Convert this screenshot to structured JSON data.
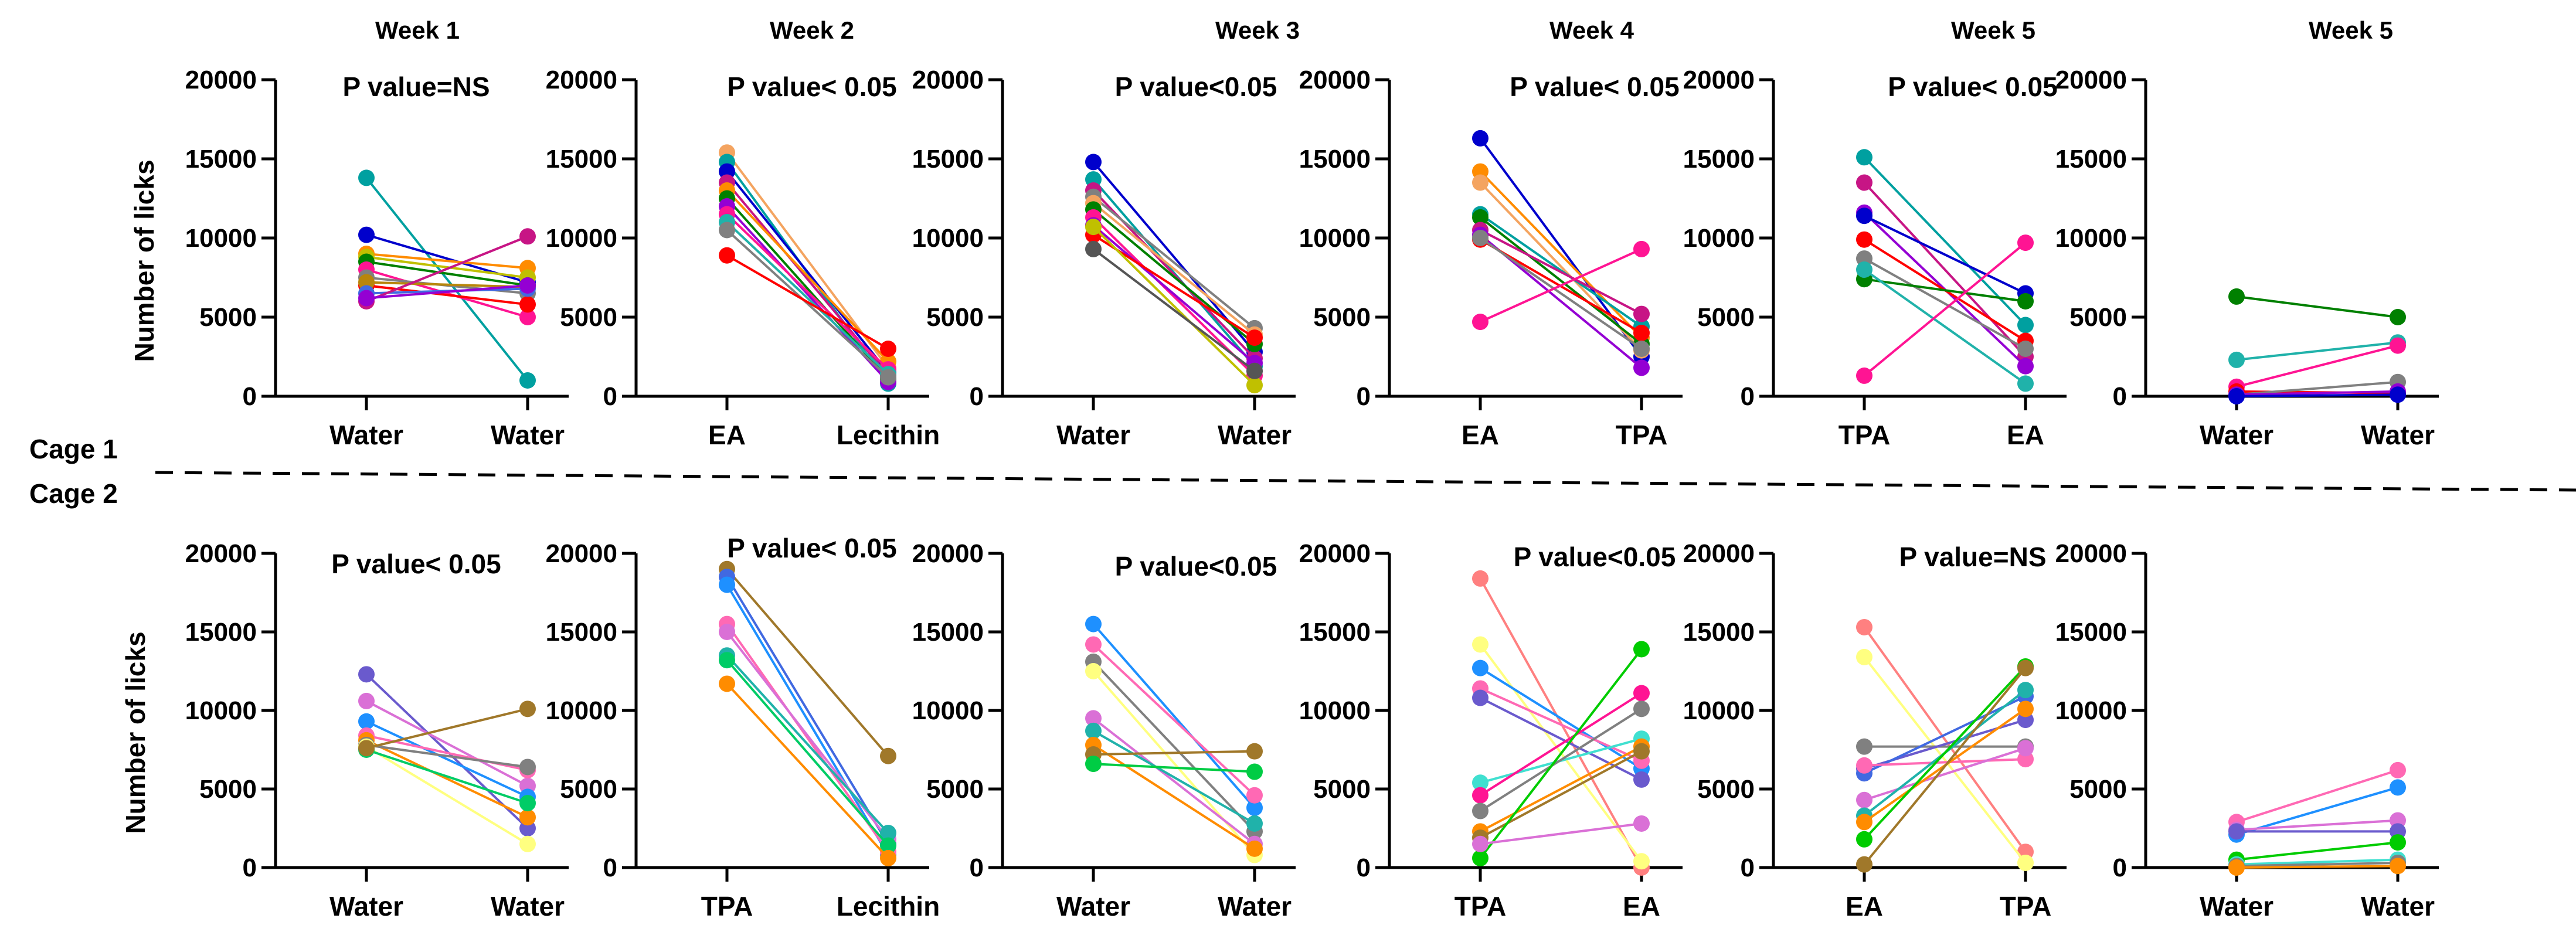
{
  "figure": {
    "week_titles": [
      "Week 1",
      "Week 2",
      "Week 3",
      "Week 4",
      "Week 5",
      "Week 5"
    ],
    "y_axis_label": "Number of licks",
    "cage_labels": [
      "Cage 1",
      "Cage 2"
    ]
  },
  "chart_data": [
    {
      "type": "line",
      "row": 0,
      "col": 0,
      "title": "Week 1",
      "annotation": "P value=NS",
      "categories": [
        "Water",
        "Water"
      ],
      "ylim": [
        0,
        20000
      ],
      "yticks": [
        0,
        5000,
        10000,
        15000,
        20000
      ],
      "ylabel": "Number of licks",
      "series": [
        {
          "color": "#00A0A0",
          "values": [
            13800,
            1000
          ]
        },
        {
          "color": "#0000CC",
          "values": [
            10200,
            7200
          ]
        },
        {
          "color": "#FF8C00",
          "values": [
            9000,
            8100
          ]
        },
        {
          "color": "#C0C000",
          "values": [
            8800,
            7500
          ]
        },
        {
          "color": "#008000",
          "values": [
            8500,
            7000
          ]
        },
        {
          "color": "#FF1493",
          "values": [
            8000,
            5000
          ]
        },
        {
          "color": "#808080",
          "values": [
            7500,
            6500
          ]
        },
        {
          "color": "#FF0000",
          "values": [
            7000,
            5800
          ]
        },
        {
          "color": "#B8860B",
          "values": [
            7200,
            6900
          ]
        },
        {
          "color": "#4169E1",
          "values": [
            6500,
            6800
          ]
        },
        {
          "color": "#C71585",
          "values": [
            6000,
            10100
          ]
        },
        {
          "color": "#9400D3",
          "values": [
            6200,
            7000
          ]
        }
      ]
    },
    {
      "type": "line",
      "row": 0,
      "col": 1,
      "title": "Week 2",
      "annotation": "P value< 0.05",
      "categories": [
        "EA",
        "Lecithin"
      ],
      "ylim": [
        0,
        20000
      ],
      "yticks": [
        0,
        5000,
        10000,
        15000,
        20000
      ],
      "series": [
        {
          "color": "#F4A460",
          "values": [
            15400,
            1800
          ]
        },
        {
          "color": "#00A0A0",
          "values": [
            14800,
            800
          ]
        },
        {
          "color": "#0000CC",
          "values": [
            14200,
            1500
          ]
        },
        {
          "color": "#C71585",
          "values": [
            13500,
            1300
          ]
        },
        {
          "color": "#FF8C00",
          "values": [
            13000,
            2200
          ]
        },
        {
          "color": "#008000",
          "values": [
            12500,
            1100
          ]
        },
        {
          "color": "#9400D3",
          "values": [
            12000,
            900
          ]
        },
        {
          "color": "#FF1493",
          "values": [
            11500,
            1700
          ]
        },
        {
          "color": "#20B2AA",
          "values": [
            11000,
            1400
          ]
        },
        {
          "color": "#808080",
          "values": [
            10500,
            1200
          ]
        },
        {
          "color": "#FF0000",
          "values": [
            8900,
            3000
          ]
        }
      ]
    },
    {
      "type": "line",
      "row": 0,
      "col": 2,
      "title": "Week 3",
      "annotation": "P value<0.05",
      "categories": [
        "Water",
        "Water"
      ],
      "ylim": [
        0,
        20000
      ],
      "yticks": [
        0,
        5000,
        10000,
        15000,
        20000
      ],
      "series": [
        {
          "color": "#0000CC",
          "values": [
            14800,
            2800
          ]
        },
        {
          "color": "#00A0A0",
          "values": [
            13700,
            1900
          ]
        },
        {
          "color": "#C71585",
          "values": [
            13000,
            2400
          ]
        },
        {
          "color": "#808080",
          "values": [
            12600,
            4300
          ]
        },
        {
          "color": "#F4A460",
          "values": [
            12200,
            3900
          ]
        },
        {
          "color": "#008000",
          "values": [
            11800,
            3300
          ]
        },
        {
          "color": "#FF1493",
          "values": [
            11300,
            1300
          ]
        },
        {
          "color": "#9400D3",
          "values": [
            10800,
            2100
          ]
        },
        {
          "color": "#FF0000",
          "values": [
            10200,
            3700
          ]
        },
        {
          "color": "#C0C000",
          "values": [
            10700,
            700
          ]
        },
        {
          "color": "#555555",
          "values": [
            9300,
            1600
          ]
        }
      ]
    },
    {
      "type": "line",
      "row": 0,
      "col": 3,
      "title": "Week 4",
      "annotation": "P value< 0.05",
      "categories": [
        "EA",
        "TPA"
      ],
      "ylim": [
        0,
        20000
      ],
      "yticks": [
        0,
        5000,
        10000,
        15000,
        20000
      ],
      "series": [
        {
          "color": "#0000CC",
          "values": [
            16300,
            2500
          ]
        },
        {
          "color": "#FF8C00",
          "values": [
            14200,
            3700
          ]
        },
        {
          "color": "#F4A460",
          "values": [
            13500,
            2900
          ]
        },
        {
          "color": "#00A0A0",
          "values": [
            11500,
            4400
          ]
        },
        {
          "color": "#008000",
          "values": [
            11300,
            3300
          ]
        },
        {
          "color": "#C71585",
          "values": [
            10500,
            5200
          ]
        },
        {
          "color": "#9400D3",
          "values": [
            10200,
            1800
          ]
        },
        {
          "color": "#FF0000",
          "values": [
            9900,
            4000
          ]
        },
        {
          "color": "#808080",
          "values": [
            10000,
            3000
          ]
        },
        {
          "color": "#FF1493",
          "values": [
            4700,
            9300
          ]
        }
      ]
    },
    {
      "type": "line",
      "row": 0,
      "col": 4,
      "title": "Week 5",
      "annotation": "P value< 0.05",
      "categories": [
        "TPA",
        "EA"
      ],
      "ylim": [
        0,
        20000
      ],
      "yticks": [
        0,
        5000,
        10000,
        15000,
        20000
      ],
      "series": [
        {
          "color": "#00A0A0",
          "values": [
            15100,
            4500
          ]
        },
        {
          "color": "#C71585",
          "values": [
            13500,
            2500
          ]
        },
        {
          "color": "#9400D3",
          "values": [
            11600,
            1900
          ]
        },
        {
          "color": "#0000CC",
          "values": [
            11400,
            6500
          ]
        },
        {
          "color": "#FF0000",
          "values": [
            9900,
            3500
          ]
        },
        {
          "color": "#808080",
          "values": [
            8700,
            3000
          ]
        },
        {
          "color": "#008000",
          "values": [
            7400,
            6000
          ]
        },
        {
          "color": "#20B2AA",
          "values": [
            8000,
            800
          ]
        },
        {
          "color": "#FF1493",
          "values": [
            1300,
            9700
          ]
        }
      ]
    },
    {
      "type": "line",
      "row": 0,
      "col": 5,
      "title": "Week 5",
      "annotation": "",
      "categories": [
        "Water",
        "Water"
      ],
      "ylim": [
        0,
        20000
      ],
      "yticks": [
        0,
        5000,
        10000,
        15000,
        20000
      ],
      "series": [
        {
          "color": "#008000",
          "values": [
            6300,
            5000
          ]
        },
        {
          "color": "#20B2AA",
          "values": [
            2300,
            3400
          ]
        },
        {
          "color": "#FF1493",
          "values": [
            600,
            3200
          ]
        },
        {
          "color": "#FF0000",
          "values": [
            300,
            200
          ]
        },
        {
          "color": "#808080",
          "values": [
            100,
            900
          ]
        },
        {
          "color": "#9400D3",
          "values": [
            100,
            300
          ]
        },
        {
          "color": "#0000CC",
          "values": [
            0,
            100
          ]
        }
      ]
    },
    {
      "type": "line",
      "row": 1,
      "col": 0,
      "title": "",
      "annotation": "P value< 0.05",
      "categories": [
        "Water",
        "Water"
      ],
      "ylim": [
        0,
        20000
      ],
      "yticks": [
        0,
        5000,
        10000,
        15000,
        20000
      ],
      "ylabel": "Number of licks",
      "series": [
        {
          "color": "#6A5ACD",
          "values": [
            12300,
            2500
          ]
        },
        {
          "color": "#DA70D6",
          "values": [
            10600,
            5200
          ]
        },
        {
          "color": "#1E90FF",
          "values": [
            9300,
            4500
          ]
        },
        {
          "color": "#FF69B4",
          "values": [
            8400,
            6200
          ]
        },
        {
          "color": "#FF8C00",
          "values": [
            8100,
            3200
          ]
        },
        {
          "color": "#808080",
          "values": [
            7800,
            6400
          ]
        },
        {
          "color": "#FFFF80",
          "values": [
            7700,
            1500
          ]
        },
        {
          "color": "#00CC66",
          "values": [
            7500,
            4100
          ]
        },
        {
          "color": "#A0782A",
          "values": [
            7600,
            10100
          ]
        }
      ]
    },
    {
      "type": "line",
      "row": 1,
      "col": 1,
      "title": "",
      "annotation": "P value< 0.05",
      "categories": [
        "TPA",
        "Lecithin"
      ],
      "ylim": [
        0,
        20000
      ],
      "yticks": [
        0,
        5000,
        10000,
        15000,
        20000
      ],
      "series": [
        {
          "color": "#A0782A",
          "values": [
            19000,
            7100
          ]
        },
        {
          "color": "#4169E1",
          "values": [
            18500,
            1500
          ]
        },
        {
          "color": "#1E90FF",
          "values": [
            18000,
            800
          ]
        },
        {
          "color": "#FF69B4",
          "values": [
            15500,
            1000
          ]
        },
        {
          "color": "#DA70D6",
          "values": [
            15000,
            1800
          ]
        },
        {
          "color": "#20B2AA",
          "values": [
            13500,
            2200
          ]
        },
        {
          "color": "#00CC66",
          "values": [
            13200,
            1400
          ]
        },
        {
          "color": "#FF8C00",
          "values": [
            11700,
            600
          ]
        }
      ]
    },
    {
      "type": "line",
      "row": 1,
      "col": 2,
      "title": "",
      "annotation": "P value<0.05",
      "categories": [
        "Water",
        "Water"
      ],
      "ylim": [
        0,
        20000
      ],
      "yticks": [
        0,
        5000,
        10000,
        15000,
        20000
      ],
      "series": [
        {
          "color": "#1E90FF",
          "values": [
            15500,
            3800
          ]
        },
        {
          "color": "#FF69B4",
          "values": [
            14200,
            4600
          ]
        },
        {
          "color": "#808080",
          "values": [
            13100,
            2300
          ]
        },
        {
          "color": "#FFFF80",
          "values": [
            12500,
            800
          ]
        },
        {
          "color": "#DA70D6",
          "values": [
            9500,
            1500
          ]
        },
        {
          "color": "#20B2AA",
          "values": [
            8700,
            2800
          ]
        },
        {
          "color": "#FF8C00",
          "values": [
            7800,
            1200
          ]
        },
        {
          "color": "#A0782A",
          "values": [
            7200,
            7400
          ]
        },
        {
          "color": "#00CC44",
          "values": [
            6600,
            6100
          ]
        }
      ]
    },
    {
      "type": "line",
      "row": 1,
      "col": 3,
      "title": "",
      "annotation": "P value<0.05",
      "categories": [
        "TPA",
        "EA"
      ],
      "ylim": [
        0,
        20000
      ],
      "yticks": [
        0,
        5000,
        10000,
        15000,
        20000
      ],
      "series": [
        {
          "color": "#FF8080",
          "values": [
            18400,
            0
          ]
        },
        {
          "color": "#FFFF80",
          "values": [
            14200,
            400
          ]
        },
        {
          "color": "#1E90FF",
          "values": [
            12700,
            6300
          ]
        },
        {
          "color": "#FF69B4",
          "values": [
            11400,
            6800
          ]
        },
        {
          "color": "#6A5ACD",
          "values": [
            10800,
            5600
          ]
        },
        {
          "color": "#40E0D0",
          "values": [
            5400,
            8200
          ]
        },
        {
          "color": "#FF1493",
          "values": [
            4600,
            11100
          ]
        },
        {
          "color": "#808080",
          "values": [
            3600,
            10100
          ]
        },
        {
          "color": "#FF8C00",
          "values": [
            2300,
            7700
          ]
        },
        {
          "color": "#A0782A",
          "values": [
            1900,
            7400
          ]
        },
        {
          "color": "#00CC00",
          "values": [
            600,
            13900
          ]
        },
        {
          "color": "#DA70D6",
          "values": [
            1500,
            2800
          ]
        }
      ]
    },
    {
      "type": "line",
      "row": 1,
      "col": 4,
      "title": "",
      "annotation": "P value=NS",
      "categories": [
        "EA",
        "TPA"
      ],
      "ylim": [
        0,
        20000
      ],
      "yticks": [
        0,
        5000,
        10000,
        15000,
        20000
      ],
      "series": [
        {
          "color": "#FF8080",
          "values": [
            15300,
            1000
          ]
        },
        {
          "color": "#FFFF80",
          "values": [
            13400,
            300
          ]
        },
        {
          "color": "#808080",
          "values": [
            7700,
            7700
          ]
        },
        {
          "color": "#6A5ACD",
          "values": [
            6300,
            9400
          ]
        },
        {
          "color": "#4169E1",
          "values": [
            6000,
            10900
          ]
        },
        {
          "color": "#FF69B4",
          "values": [
            6500,
            6900
          ]
        },
        {
          "color": "#DA70D6",
          "values": [
            4300,
            7600
          ]
        },
        {
          "color": "#20B2AA",
          "values": [
            3300,
            11300
          ]
        },
        {
          "color": "#FF8C00",
          "values": [
            2900,
            10100
          ]
        },
        {
          "color": "#00CC00",
          "values": [
            1800,
            12800
          ]
        },
        {
          "color": "#A0782A",
          "values": [
            200,
            12700
          ]
        }
      ]
    },
    {
      "type": "line",
      "row": 1,
      "col": 5,
      "title": "",
      "annotation": "",
      "categories": [
        "Water",
        "Water"
      ],
      "ylim": [
        0,
        20000
      ],
      "yticks": [
        0,
        5000,
        10000,
        15000,
        20000
      ],
      "series": [
        {
          "color": "#FF69B4",
          "values": [
            2900,
            6200
          ]
        },
        {
          "color": "#1E90FF",
          "values": [
            2100,
            5100
          ]
        },
        {
          "color": "#DA70D6",
          "values": [
            2400,
            3000
          ]
        },
        {
          "color": "#6A5ACD",
          "values": [
            2300,
            2300
          ]
        },
        {
          "color": "#00CC00",
          "values": [
            500,
            1600
          ]
        },
        {
          "color": "#40E0D0",
          "values": [
            200,
            500
          ]
        },
        {
          "color": "#808080",
          "values": [
            100,
            300
          ]
        },
        {
          "color": "#FF8C00",
          "values": [
            0,
            100
          ]
        }
      ]
    }
  ]
}
